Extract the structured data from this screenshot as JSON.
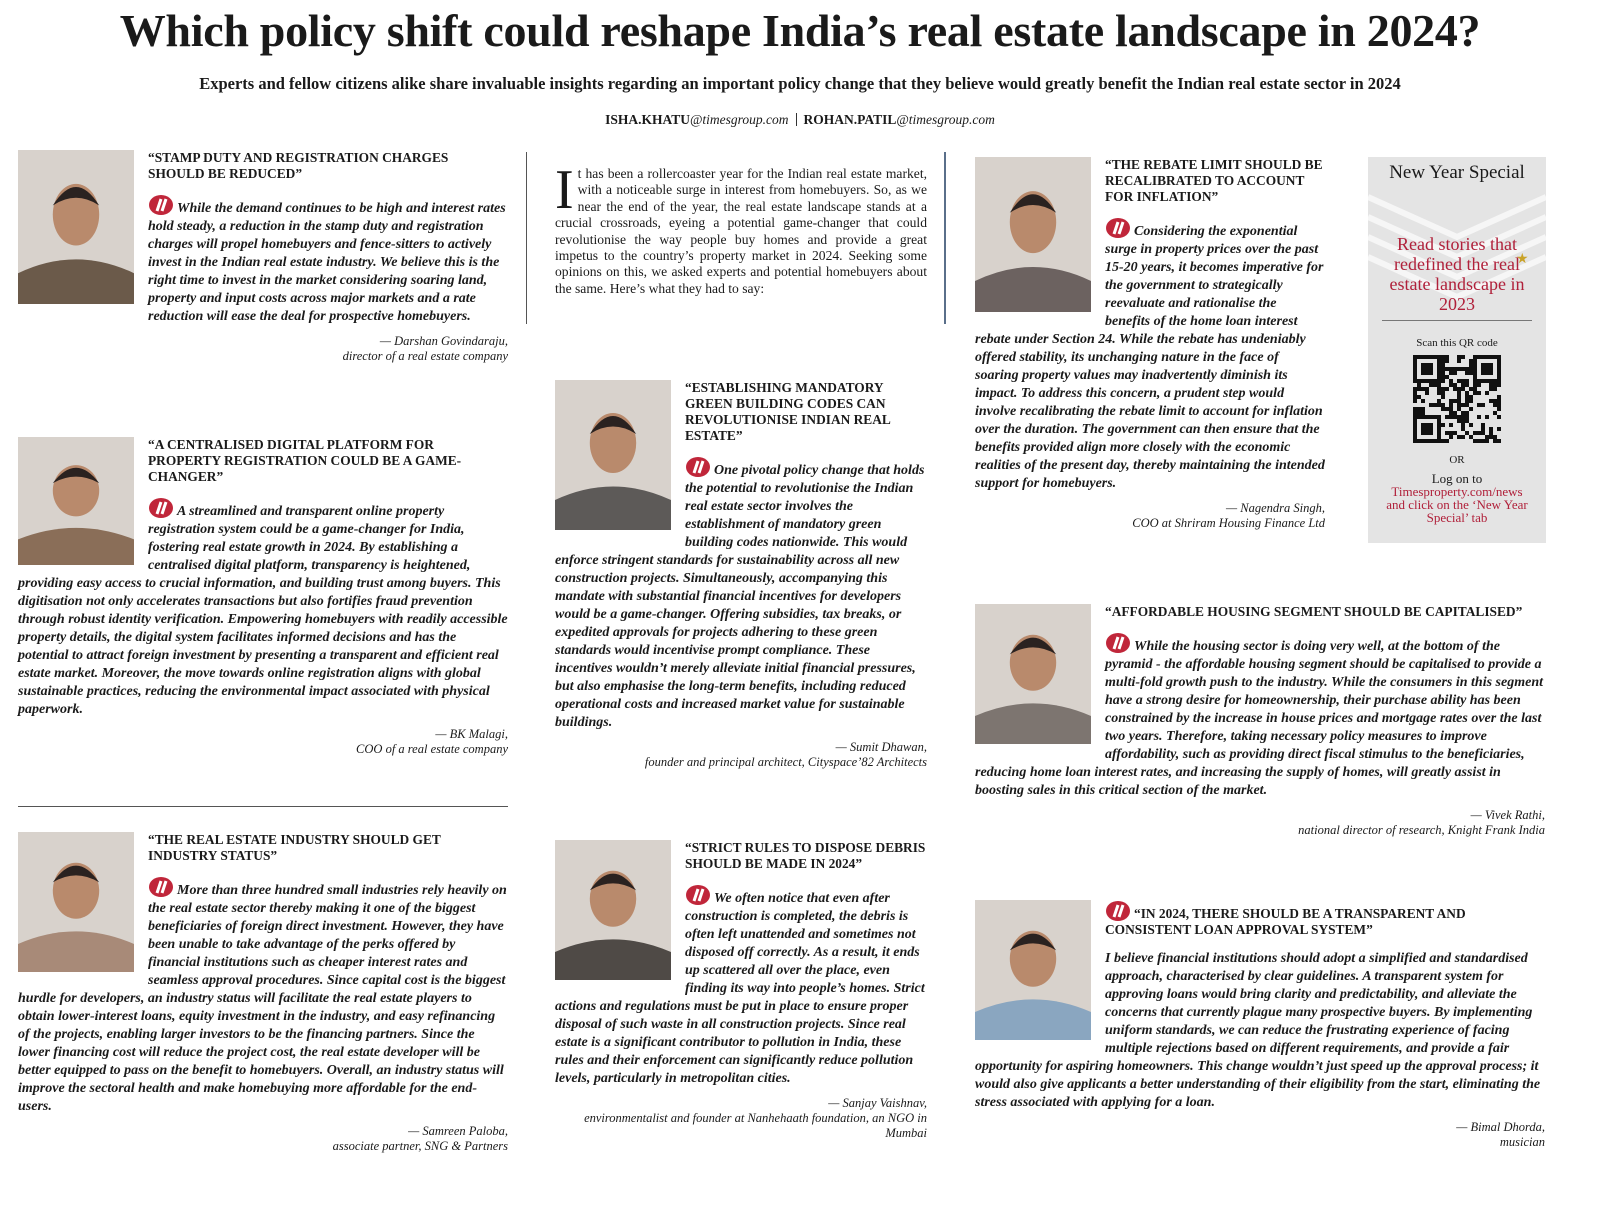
{
  "header": {
    "title": "Which policy shift could reshape India’s real estate landscape in 2024?",
    "subtitle": "Experts and fellow citizens alike share invaluable insights regarding an important policy change that they believe would greatly benefit the Indian real estate sector in 2024",
    "byline": [
      {
        "name": "ISHA.KHATU",
        "domain": "@timesgroup.com"
      },
      {
        "name": "ROHAN.PATIL",
        "domain": "@timesgroup.com"
      }
    ]
  },
  "intro": "It has been a rollercoaster year for the Indian real estate market, with a noticeable surge in interest from homebuyers. So, as we near the end of the year, the real estate landscape stands at a crucial crossroads, eyeing a potential game-changer that could revolutionise the way people buy homes and provide a great impetus to the country’s property market in 2024. Seeking some opinions on this, we asked experts and potential homebuyers about the same. Here’s what they had to say:",
  "articles": [
    {
      "heading": "“STAMP DUTY AND REGISTRATION CHARGES SHOULD BE REDUCED”",
      "body": "While the demand continues to be high and interest rates hold steady, a reduction in the stamp duty and registration charges will propel homebuyers and fence-sitters to actively invest in the Indian real estate industry. We believe this is the right time to invest in the market considering soaring land, property and input costs across major markets and a rate reduction will ease the deal for prospective homebuyers.",
      "author": "— Darshan Govindaraju,",
      "role": "director of a real estate company"
    },
    {
      "heading": "“A CENTRALISED DIGITAL PLATFORM FOR PROPERTY REGISTRATION COULD BE A GAME-CHANGER”",
      "body": "A streamlined and transparent online property registration system could be a game-changer for India, fostering real estate growth in 2024. By establishing a centralised digital platform, transparency is heightened, providing easy access to crucial information, and building trust among buyers. This digitisation not only accelerates transactions but also fortifies fraud prevention through robust identity verification. Empowering homebuyers with readily accessible property details, the digital system facilitates informed decisions and has the potential to attract foreign investment by presenting a transparent and efficient real estate market. Moreover, the move towards online registration aligns with global sustainable practices, reducing the environmental impact associated with physical paperwork.",
      "author": "— BK Malagi,",
      "role": "COO of a real estate company"
    },
    {
      "heading": "“THE REAL ESTATE INDUSTRY SHOULD GET INDUSTRY STATUS”",
      "body": "More than three hundred small industries rely heavily on the real estate sector thereby making it one of the biggest beneficiaries of foreign direct investment. However, they have been unable to take advantage of the perks offered by financial institutions such as cheaper interest rates and seamless approval procedures. Since capital cost is the biggest hurdle for developers, an industry status will facilitate the real estate players to obtain lower-interest loans, equity investment in the industry, and easy refinancing of the projects, enabling larger investors to be the financing partners. Since the lower financing cost will reduce the project cost, the real estate developer will be better equipped to pass on the benefit to homebuyers. Overall, an industry status will improve the sectoral health and make homebuying more affordable for the end-users.",
      "author": "— Samreen Paloba,",
      "role": "associate partner, SNG & Partners"
    },
    {
      "heading": "“ESTABLISHING MANDATORY GREEN BUILDING CODES CAN REVOLUTIONISE INDIAN REAL ESTATE”",
      "body": "One pivotal policy change that holds the potential to revolutionise the Indian real estate sector involves the establishment of mandatory green building codes nationwide. This would enforce stringent standards for sustainability across all new construction projects. Simultaneously, accompanying this mandate with substantial financial incentives for developers would be a game-changer. Offering subsidies, tax breaks, or expedited approvals for projects adhering to these green standards would incentivise prompt compliance. These incentives wouldn’t merely alleviate initial financial pressures, but also emphasise the long-term benefits, including reduced operational costs and increased market value for sustainable buildings.",
      "author": "— Sumit Dhawan,",
      "role": "founder and principal architect, Cityspace’82 Architects"
    },
    {
      "heading": "“STRICT RULES TO DISPOSE DEBRIS SHOULD BE MADE IN 2024”",
      "body": "We often notice that even after construction is completed, the debris is often left unattended and sometimes not disposed off correctly. As a result, it ends up scattered all over the place, even finding its way into people’s homes. Strict actions and regulations must be put in place to ensure proper disposal of such waste in all construction projects. Since real estate is a significant contributor to pollution in India, these rules and their enforcement can significantly reduce pollution levels, particularly in metropolitan cities.",
      "author": "— Sanjay Vaishnav,",
      "role": "environmentalist and founder at Nanhehaath foundation, an NGO in Mumbai"
    },
    {
      "heading": "“THE REBATE LIMIT SHOULD BE RECALIBRATED TO ACCOUNT FOR INFLATION”",
      "body": "Considering the exponential surge in property prices over the past 15-20 years, it becomes imperative for the government to strategically reevaluate and rationalise the benefits of the home loan interest rebate under Section 24. While the rebate has undeniably offered stability, its unchanging nature in the face of soaring property values may inadvertently diminish its impact. To address this concern, a prudent step would involve recalibrating the rebate limit to account for inflation over the duration. The government can then ensure that the benefits provided align more closely with the economic realities of the present day, thereby maintaining the intended support for homebuyers.",
      "author": "— Nagendra Singh,",
      "role": "COO at Shriram Housing Finance Ltd"
    },
    {
      "heading": "“AFFORDABLE HOUSING SEGMENT SHOULD BE CAPITALISED”",
      "body": "While the housing sector is doing very well, at the bottom of the pyramid - the affordable housing segment should be capitalised to provide a multi-fold growth push to the industry. While the consumers in this segment have a strong desire for homeownership, their purchase ability has been constrained by the increase in house prices and mortgage rates over the last two years. Therefore, taking necessary policy measures to improve affordability, such as providing direct fiscal stimulus to the beneficiaries, reducing home loan interest rates, and increasing the supply of homes, will greatly assist in boosting sales in this critical section of the market.",
      "author": "— Vivek Rathi,",
      "role": "national director of research, Knight Frank India"
    },
    {
      "heading": "“IN 2024, THERE SHOULD BE A TRANSPARENT AND CONSISTENT LOAN APPROVAL SYSTEM”",
      "body": "I believe financial institutions should adopt a simplified and standardised approach, characterised by clear guidelines. A transparent system for approving loans would bring clarity and predictability, and alleviate the concerns that currently plague many prospective buyers. By implementing uniform standards, we can reduce the frustrating experience of facing multiple rejections based on different requirements, and provide a fair opportunity for aspiring homeowners. This change wouldn’t just speed up the approval process; it would also give applicants a better understanding of their eligibility from the start, eliminating the stress associated with applying for a loan.",
      "author": "— Bimal Dhorda,",
      "role": "musician"
    }
  ],
  "sidebar": {
    "title": "New Year Special",
    "promo": "Read stories that redefined the real estate landscape in 2023",
    "scan": "Scan this QR code",
    "or": "OR",
    "logon": "Log on to",
    "url": "Timesproperty.com/news",
    "tail": "and click on the ‘New Year Special’ tab"
  }
}
